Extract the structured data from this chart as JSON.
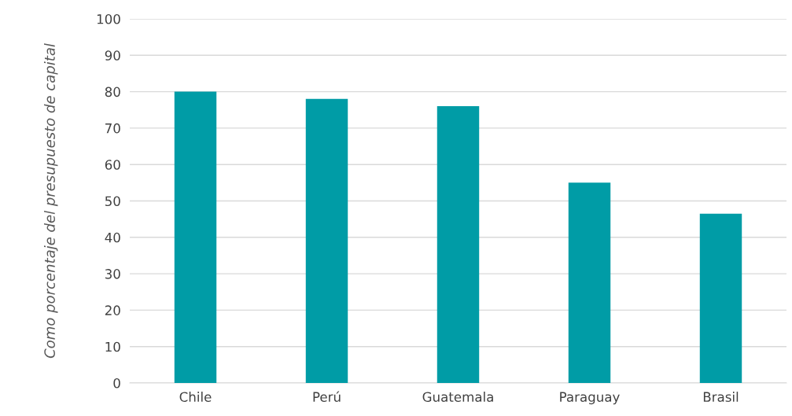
{
  "chart_data": {
    "type": "bar",
    "ylabel": "Como porcentaje del presupuesto de capital",
    "categories": [
      "Chile",
      "Perú",
      "Guatemala",
      "Paraguay",
      "Brasil"
    ],
    "values": [
      80,
      78,
      76,
      55,
      46.5
    ],
    "color": "#009ca6",
    "ylim": [
      0,
      100
    ],
    "yticks": [
      0,
      10,
      20,
      30,
      40,
      50,
      60,
      70,
      80,
      90,
      100
    ],
    "grid": "y",
    "legend": false
  }
}
